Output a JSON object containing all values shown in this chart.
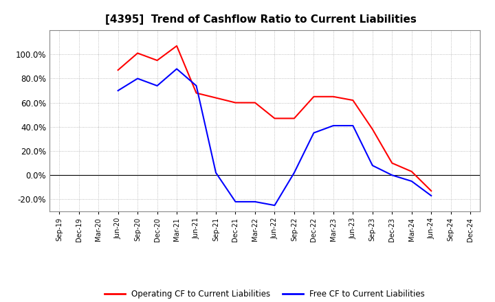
{
  "title": "[4395]  Trend of Cashflow Ratio to Current Liabilities",
  "x_labels": [
    "Sep-19",
    "Dec-19",
    "Mar-20",
    "Jun-20",
    "Sep-20",
    "Dec-20",
    "Mar-21",
    "Jun-21",
    "Sep-21",
    "Dec-21",
    "Mar-22",
    "Jun-22",
    "Sep-22",
    "Dec-22",
    "Mar-23",
    "Jun-23",
    "Sep-23",
    "Dec-23",
    "Mar-24",
    "Jun-24",
    "Sep-24",
    "Dec-24"
  ],
  "op_x_idx": [
    3,
    4,
    5,
    6,
    7,
    8,
    9,
    10,
    11,
    12,
    13,
    14,
    15,
    16,
    17,
    18,
    19
  ],
  "op_y": [
    87,
    101,
    95,
    107,
    68,
    64,
    60,
    60,
    47,
    47,
    65,
    65,
    62,
    38,
    10,
    3,
    -13
  ],
  "free_x_idx": [
    3,
    4,
    5,
    6,
    7,
    8,
    9,
    10,
    11,
    12,
    13,
    14,
    15,
    16,
    17,
    18,
    19
  ],
  "free_y": [
    70,
    80,
    74,
    88,
    74,
    2,
    -22,
    -22,
    -25,
    2,
    35,
    41,
    41,
    8,
    0,
    -5,
    -17
  ],
  "ylim": [
    -30,
    120
  ],
  "yticks": [
    -20,
    0,
    20,
    40,
    60,
    80,
    100
  ],
  "operating_color": "#FF0000",
  "free_color": "#0000FF",
  "legend_op": "Operating CF to Current Liabilities",
  "legend_free": "Free CF to Current Liabilities"
}
